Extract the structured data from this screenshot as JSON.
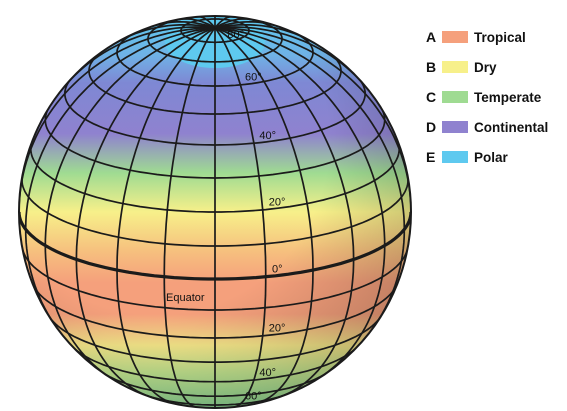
{
  "globe": {
    "equator_label": "Equator",
    "lat_labels_north": [
      "0°",
      "20°",
      "40°",
      "60°",
      "80°"
    ],
    "lat_labels_south": [
      "20°",
      "40°",
      "60°"
    ]
  },
  "legend": [
    {
      "letter": "A",
      "name": "Tropical",
      "color": "#f5a07c"
    },
    {
      "letter": "B",
      "name": "Dry",
      "color": "#f7f08a"
    },
    {
      "letter": "C",
      "name": "Temperate",
      "color": "#9fdb92"
    },
    {
      "letter": "D",
      "name": "Continental",
      "color": "#8f82cf"
    },
    {
      "letter": "E",
      "name": "Polar",
      "color": "#5ec9ef"
    }
  ]
}
